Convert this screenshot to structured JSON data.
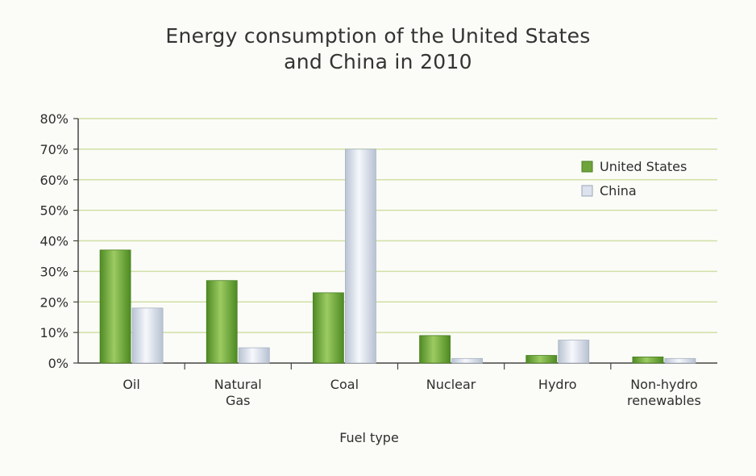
{
  "chart_data": {
    "type": "bar",
    "title": "Energy consumption of the United States and China in 2010",
    "title_lines": [
      "Energy consumption of the United States",
      "and China in 2010"
    ],
    "xlabel": "Fuel type",
    "ylabel": "",
    "categories": [
      "Oil",
      "Natural Gas",
      "Coal",
      "Nuclear",
      "Hydro",
      "Non-hydro renewables"
    ],
    "category_lines": [
      [
        "Oil"
      ],
      [
        "Natural",
        "Gas"
      ],
      [
        "Coal"
      ],
      [
        "Nuclear"
      ],
      [
        "Hydro"
      ],
      [
        "Non-hydro",
        "renewables"
      ]
    ],
    "series": [
      {
        "name": "United States",
        "values": [
          37,
          27,
          23,
          9,
          2.5,
          2
        ],
        "color": "#6fa43c"
      },
      {
        "name": "China",
        "values": [
          18,
          5,
          70,
          1.5,
          7.5,
          1.5
        ],
        "color": "#dce3ee"
      }
    ],
    "ylim": [
      0,
      80
    ],
    "yticks": [
      0,
      10,
      20,
      30,
      40,
      50,
      60,
      70,
      80
    ],
    "ytick_labels": [
      "0%",
      "10%",
      "20%",
      "30%",
      "40%",
      "50%",
      "60%",
      "70%",
      "80%"
    ],
    "grid": true,
    "legend_position": "top-right"
  },
  "colors": {
    "grid": "#cfe0a6",
    "axis": "#444444",
    "us_bar": "#6fa43c",
    "china_bar": "#dce3ee"
  }
}
